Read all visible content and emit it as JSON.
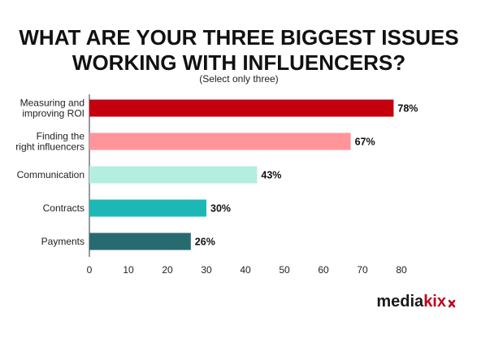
{
  "chart_data": {
    "type": "bar",
    "orientation": "horizontal",
    "title_lines": [
      "WHAT ARE YOUR THREE BIGGEST ISSUES",
      "WORKING WITH INFLUENCERS?"
    ],
    "subtitle": "(Select only three)",
    "categories": [
      [
        "Measuring and",
        "improving ROI"
      ],
      [
        "Finding the",
        "right influencers"
      ],
      [
        "Communication"
      ],
      [
        "Contracts"
      ],
      [
        "Payments"
      ]
    ],
    "values": [
      78,
      67,
      43,
      30,
      26
    ],
    "data_labels": [
      "78%",
      "67%",
      "43%",
      "30%",
      "26%"
    ],
    "bar_colors": [
      "#c4000f",
      "#ff959b",
      "#b3eee1",
      "#1db8b6",
      "#276b71"
    ],
    "xlim": [
      0,
      80
    ],
    "ticks": [
      0,
      10,
      20,
      30,
      40,
      50,
      60,
      70,
      80
    ],
    "grid": false,
    "legend": "none"
  },
  "brand": {
    "logo_main": "media",
    "logo_accent": "kix",
    "accent_color": "#c0001a"
  }
}
